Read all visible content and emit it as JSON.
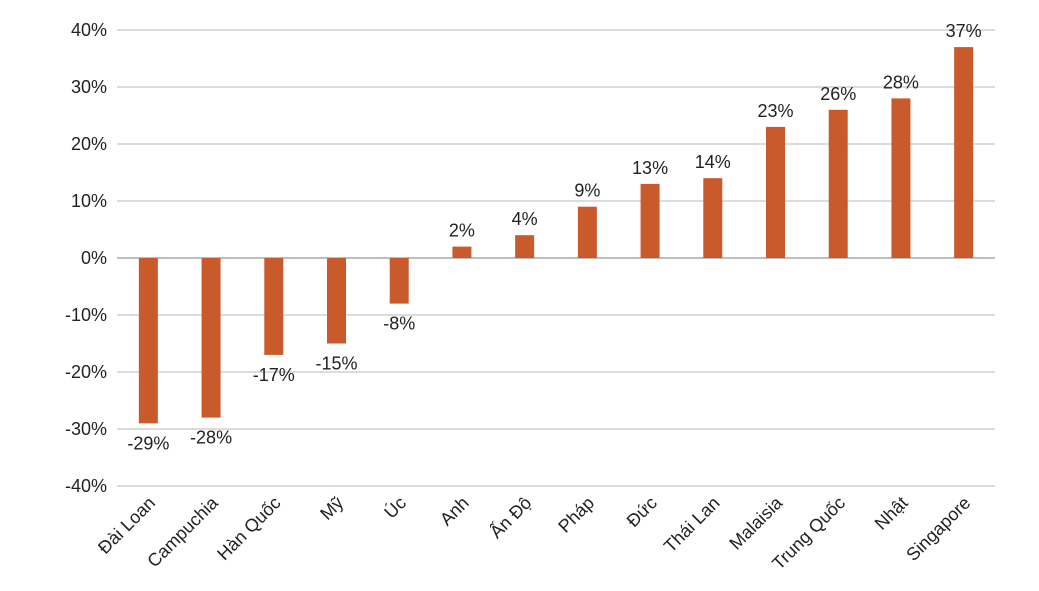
{
  "chart_data": {
    "type": "bar",
    "categories": [
      "Đài Loan",
      "Campuchia",
      "Hàn Quốc",
      "Mỹ",
      "Úc",
      "Anh",
      "Ấn Độ",
      "Pháp",
      "Đức",
      "Thái Lan",
      "Malaisia",
      "Trung Quốc",
      "Nhật",
      "Singapore"
    ],
    "values": [
      -29,
      -28,
      -17,
      -15,
      -8,
      2,
      4,
      9,
      13,
      14,
      23,
      26,
      28,
      37
    ],
    "data_labels": [
      "-29%",
      "-28%",
      "-17%",
      "-15%",
      "-8%",
      "2%",
      "4%",
      "9%",
      "13%",
      "14%",
      "23%",
      "26%",
      "28%",
      "37%"
    ],
    "y_ticks": [
      40,
      30,
      20,
      10,
      0,
      -10,
      -20,
      -30,
      -40
    ],
    "y_tick_labels": [
      "40%",
      "30%",
      "20%",
      "10%",
      "0%",
      "-10%",
      "-20%",
      "-30%",
      "-40%"
    ],
    "ylim": [
      -40,
      40
    ],
    "grid": true,
    "legend": "none",
    "bar_color": "#c95a2b",
    "title": "",
    "xlabel": "",
    "ylabel": ""
  }
}
